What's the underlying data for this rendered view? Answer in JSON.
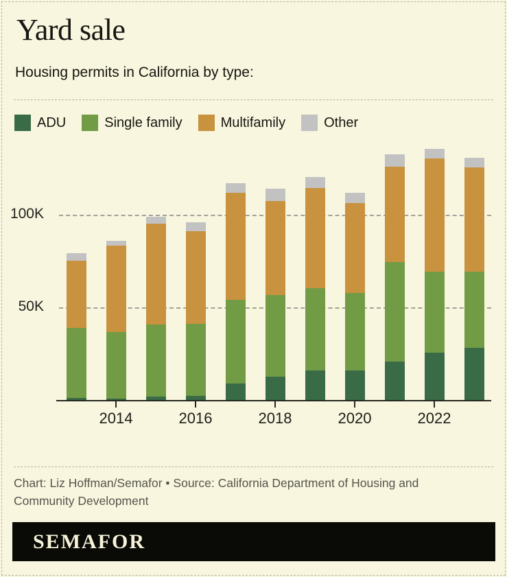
{
  "page": {
    "background_color": "#f8f6df",
    "border_color": "#b5b4a8"
  },
  "header": {
    "title": "Yard sale",
    "subtitle": "Housing permits in California by type:"
  },
  "chart_data": {
    "type": "bar",
    "stacked": true,
    "title": "Yard sale",
    "subtitle": "Housing permits in California by type:",
    "unit": "thousands of permits",
    "categories": [
      "2013",
      "2014",
      "2015",
      "2016",
      "2017",
      "2018",
      "2019",
      "2020",
      "2021",
      "2022",
      "2023"
    ],
    "series": [
      {
        "name": "ADU",
        "color": "#3a6b47",
        "values": [
          1.2,
          0.6,
          1.8,
          2.1,
          8.8,
          12.5,
          16.1,
          16.1,
          20.8,
          25.5,
          28.1
        ]
      },
      {
        "name": "Single family",
        "color": "#719c45",
        "values": [
          37.7,
          36.0,
          39.1,
          39.0,
          45.3,
          44.0,
          44.1,
          41.7,
          53.7,
          43.7,
          41.1
        ]
      },
      {
        "name": "Multifamily",
        "color": "#c8923f",
        "values": [
          36.2,
          46.8,
          54.3,
          50.1,
          57.9,
          50.8,
          54.2,
          48.4,
          51.6,
          61.1,
          56.4
        ]
      },
      {
        "name": "Other",
        "color": "#c2c2c2",
        "values": [
          4.0,
          2.4,
          3.7,
          4.7,
          5.1,
          6.6,
          5.9,
          5.5,
          6.4,
          5.3,
          5.1
        ]
      }
    ],
    "totals": [
      79.1,
      85.8,
      98.9,
      95.9,
      117.1,
      113.9,
      120.3,
      111.7,
      132.5,
      135.6,
      130.7
    ],
    "ylim": [
      0,
      140
    ],
    "y_ticks": [
      {
        "value": 50,
        "label": "50K"
      },
      {
        "value": 100,
        "label": "100K"
      }
    ],
    "x_tick_labels": [
      "2014",
      "2016",
      "2018",
      "2020",
      "2022"
    ],
    "grid": "horizontal dashed, behind bars",
    "legend_position": "top"
  },
  "footer": {
    "credit": "Chart: Liz Hoffman/Semafor • Source: California Department of Housing and Community Development",
    "wordmark": "SEMAFOR"
  }
}
